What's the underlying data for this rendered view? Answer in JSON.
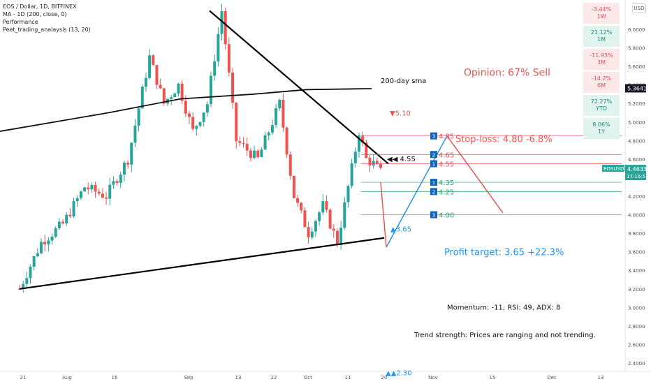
{
  "legend": {
    "pair": "EOS / Dollar, 1D, BITFINEX",
    "ma": "MA - 1D (200, close, 0)",
    "perf": "Performance",
    "indicator": "Peet_trading_analaysis (13, 20)"
  },
  "currency_button": "USD",
  "performance": [
    {
      "value": "-3.44%",
      "period": "1W",
      "bg": "#fce8e8",
      "color": "#e0505a"
    },
    {
      "value": "21.12%",
      "period": "1M",
      "bg": "#e1f3ef",
      "color": "#1f8a74"
    },
    {
      "value": "-11.93%",
      "period": "3M",
      "bg": "#fce8e8",
      "color": "#e0505a"
    },
    {
      "value": "-14.2%",
      "period": "6M",
      "bg": "#fce8e8",
      "color": "#e0505a"
    },
    {
      "value": "72.27%",
      "period": "YTD",
      "bg": "#e1f3ef",
      "color": "#1f8a74"
    },
    {
      "value": "8.06%",
      "period": "1Y",
      "bg": "#e1f3ef",
      "color": "#1f8a74"
    }
  ],
  "annotations": {
    "sma_label": "200-day sma",
    "opinion": "Opinion: 67% Sell",
    "stop_loss": "Stop-loss: 4.80 -6.8%",
    "profit_target": "Profit target: 3.65 +22.3%",
    "momentum": "Momentum: -11, RSI: 49, ADX: 8",
    "trend": "Trend strength: Prices are ranging and not trending.",
    "down_marker": "▼5.10",
    "up_marker": "▲3.65",
    "up_marker2": "▲▲2.30",
    "pointer": "◀◀ 4.55"
  },
  "levels": [
    {
      "num": "3",
      "price": 4.85,
      "label": "4.85",
      "color": "#e0505a"
    },
    {
      "num": "2",
      "price": 4.65,
      "label": "4.65",
      "color": "#e0505a"
    },
    {
      "num": "1",
      "price": 4.55,
      "label": "4.55",
      "color": "#e0505a"
    },
    {
      "num": "1",
      "price": 4.35,
      "label": "4.35",
      "color": "#2aa36b"
    },
    {
      "num": "2",
      "price": 4.25,
      "label": "4.25",
      "color": "#2aa36b"
    },
    {
      "num": "3",
      "price": 4.0,
      "label": "4.00",
      "color": "#2aa36b"
    }
  ],
  "price_labels": {
    "sma_value": "5.3641",
    "ticker": "EOSUSD",
    "current": "4.4633",
    "countdown": "17:16:57"
  },
  "chart_data": {
    "type": "line",
    "title": "EOS / Dollar, 1D, BITFINEX",
    "xlabel": "",
    "ylabel": "",
    "ylim": [
      2.3,
      6.2
    ],
    "x_ticks": [
      "21",
      "Aug",
      "16",
      "Sep",
      "13",
      "22",
      "Oct",
      "11",
      "20",
      "Nov",
      "15",
      "Dec",
      "13"
    ],
    "y_ticks": [
      "6.0000",
      "5.8000",
      "5.6000",
      "5.4000",
      "5.2000",
      "5.0000",
      "4.8000",
      "4.6000",
      "4.4000",
      "4.2000",
      "4.0000",
      "3.8000",
      "3.6000",
      "3.4000",
      "3.2000",
      "3.0000",
      "2.8000",
      "2.6000",
      "2.4000"
    ],
    "series": [
      {
        "name": "EOS / Dollar",
        "type": "close",
        "x_index": [
          0,
          6,
          12,
          18,
          24,
          30,
          36,
          40,
          44,
          48,
          52,
          56,
          60,
          66,
          72,
          76,
          80,
          84,
          88,
          92,
          94,
          96,
          98,
          100
        ],
        "values": [
          3.2,
          3.7,
          3.9,
          4.3,
          4.2,
          4.6,
          5.7,
          5.2,
          5.4,
          4.9,
          5.2,
          6.2,
          4.8,
          4.6,
          5.2,
          4.2,
          3.8,
          4.1,
          3.7,
          4.5,
          4.9,
          4.6,
          4.55,
          4.46
        ]
      },
      {
        "name": "MA - 1D (200, close, 0)",
        "type": "sma",
        "x_index": [
          0,
          30,
          50,
          70,
          85,
          100
        ],
        "values": [
          4.9,
          5.1,
          5.25,
          5.3,
          5.35,
          5.36
        ]
      }
    ],
    "current_price": 4.4633,
    "sma_price": 5.3641,
    "support_trendline": [
      [
        3.2,
        3.75
      ]
    ],
    "resistance_trendline": [
      [
        6.2,
        4.55
      ]
    ],
    "scenarios": [
      {
        "name": "short",
        "path": [
          4.55,
          4.0,
          3.65
        ],
        "target": 3.65
      },
      {
        "name": "long",
        "path": [
          3.65,
          4.8,
          4.0
        ],
        "target": 4.8
      }
    ]
  }
}
